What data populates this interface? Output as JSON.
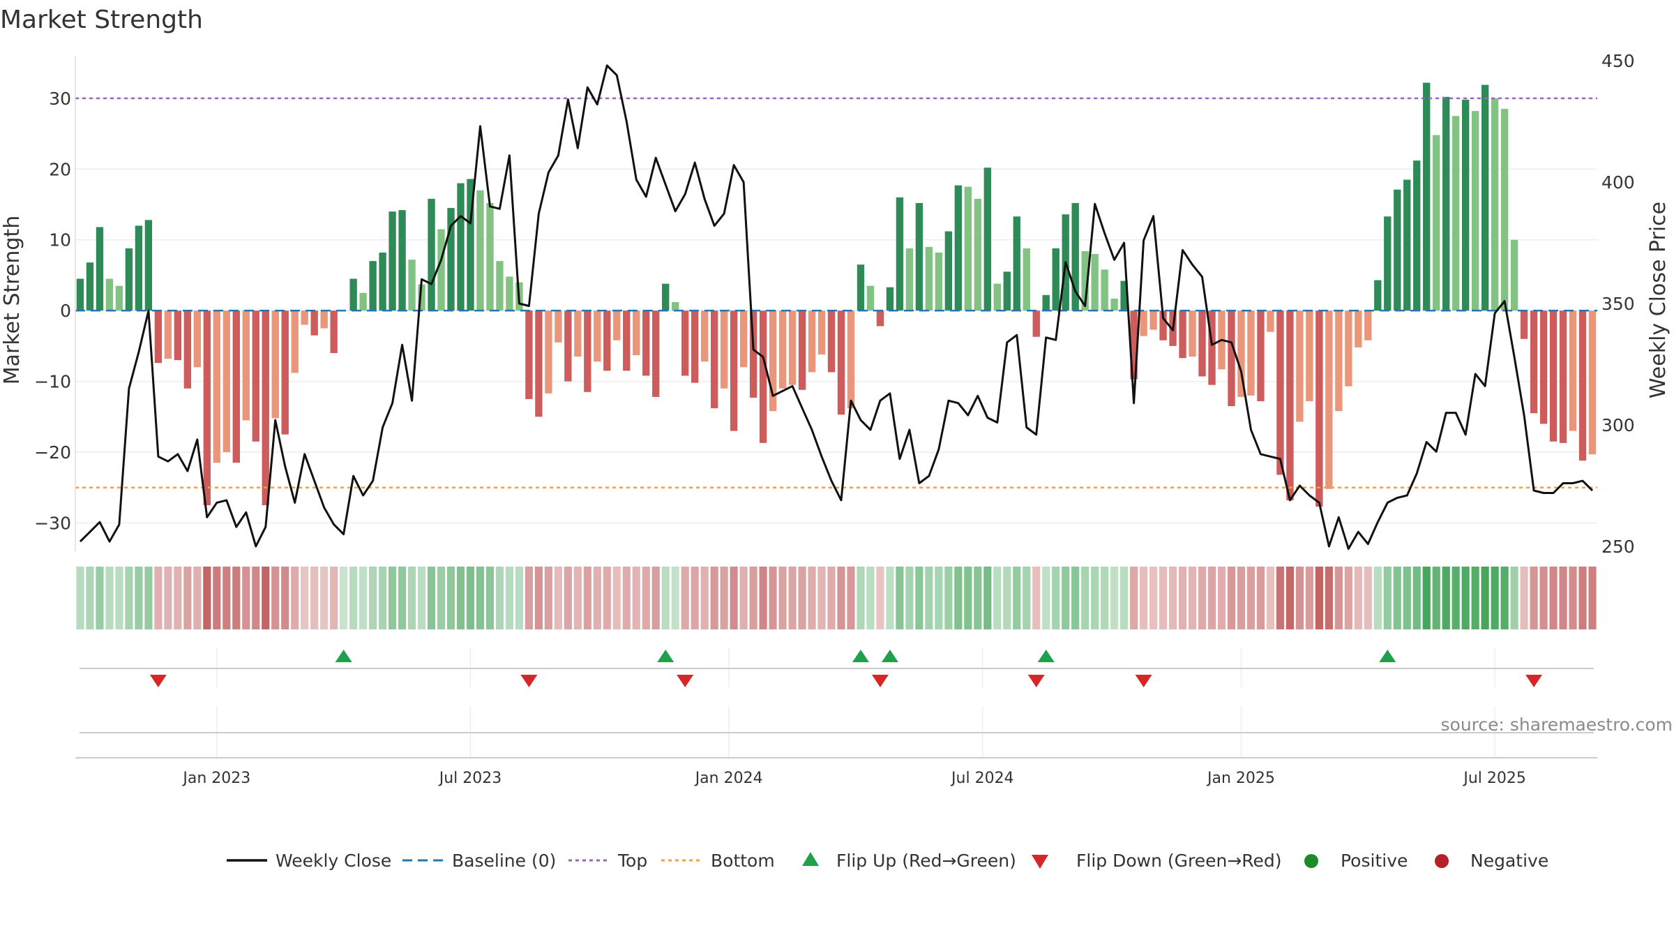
{
  "chart_data": {
    "type": "bar",
    "title": "Market Strength",
    "ylabel": "Market Strength",
    "y2label": "Weekly Close Price",
    "ylim": [
      -34,
      36
    ],
    "y2lim": [
      248,
      452
    ],
    "yticks": [
      30,
      20,
      10,
      0,
      -10,
      -20,
      -30
    ],
    "yticklabels": [
      "30",
      "20",
      "10",
      "0",
      "−10",
      "−20",
      "−30"
    ],
    "y2ticks": [
      450,
      400,
      350,
      300,
      250
    ],
    "top_threshold": 30,
    "bottom_threshold": -25,
    "baseline": 0,
    "start_date": "2022-09-26",
    "xtick_labels": [
      "Jan 2023",
      "Jul 2023",
      "Jan 2024",
      "Jul 2024",
      "Jan 2025",
      "Jul 2025"
    ],
    "xtick_weeks": [
      14,
      40,
      66.5,
      92.5,
      119,
      145
    ],
    "strength": [
      4.5,
      6.8,
      11.8,
      4.5,
      3.5,
      8.8,
      12,
      12.8,
      -7.4,
      -6.8,
      -7,
      -11,
      -8,
      -27.5,
      -21.5,
      -20,
      -21.5,
      -15.5,
      -18.5,
      -27.5,
      -15.2,
      -17.5,
      -8.8,
      -2,
      -3.5,
      -2.5,
      -6,
      0,
      4.5,
      2.5,
      7,
      8.2,
      14,
      14.2,
      7.2,
      3.7,
      15.8,
      11.5,
      14.5,
      18,
      18.6,
      17,
      15.2,
      7,
      4.8,
      4,
      -12.5,
      -15,
      -11.7,
      -4.5,
      -10,
      -6.5,
      -11.5,
      -7.2,
      -8.5,
      -4.2,
      -8.5,
      -6.3,
      -9.2,
      -12.2,
      3.8,
      1.2,
      -9.2,
      -10.2,
      -7.2,
      -13.8,
      -11,
      -17,
      -8,
      -12.3,
      -18.7,
      -14.2,
      -11,
      -10.5,
      -11.2,
      -8.7,
      -6.2,
      -8.7,
      -14.7,
      -13.8,
      6.5,
      3.5,
      -2.2,
      3.3,
      16,
      8.8,
      15.2,
      9,
      8.2,
      11.2,
      17.7,
      17.5,
      15.8,
      20.2,
      3.8,
      5.5,
      13.3,
      8.8,
      -3.7,
      2.2,
      8.8,
      13.6,
      15.2,
      8.4,
      8,
      5.8,
      1.7,
      4.2,
      -9.7,
      -3.6,
      -2.7,
      -4.2,
      -5,
      -6.7,
      -6.5,
      -9.3,
      -10.5,
      -8.3,
      -13.5,
      -12.2,
      -12,
      -12.8,
      -3,
      -23.2,
      -26.8,
      -15.7,
      -12.8,
      -27.7,
      -25.2,
      -14.2,
      -10.7,
      -5.2,
      -4.2,
      4.3,
      13.3,
      17.1,
      18.5,
      21.2,
      32.2,
      24.8,
      30.2,
      27.5,
      29.8,
      28.2,
      31.9,
      30,
      28.5,
      10,
      -4,
      -14.5,
      -16,
      -18.5,
      -18.7,
      -17,
      -21.2,
      -20.3
    ],
    "weekly_close": [
      252,
      256,
      260,
      252,
      259,
      315,
      330,
      347,
      287,
      285,
      288,
      281,
      294,
      262,
      268,
      269,
      258,
      264,
      250,
      258,
      302,
      283,
      268,
      288,
      277,
      266,
      259,
      255,
      279,
      271,
      277,
      299,
      309,
      333,
      310,
      360,
      358,
      368,
      382,
      386,
      383,
      423,
      390,
      389,
      411,
      350,
      349,
      387,
      404,
      411,
      434,
      414,
      439,
      432,
      448,
      444,
      425,
      401,
      394,
      410,
      399,
      388,
      395,
      408,
      393,
      382,
      387,
      407,
      400,
      331,
      328,
      312,
      314,
      316,
      307,
      298,
      287,
      277,
      269,
      310,
      302,
      298,
      310,
      313,
      286,
      298,
      276,
      279,
      290,
      310,
      309,
      304,
      312,
      303,
      301,
      334,
      337,
      299,
      296,
      336,
      335,
      367,
      355,
      349,
      391,
      379,
      368,
      375,
      309,
      376,
      386,
      344,
      339,
      372,
      366,
      361,
      333,
      335,
      334,
      322,
      298,
      288,
      287,
      286,
      269,
      275,
      271,
      268,
      250,
      262,
      249,
      256,
      251,
      260,
      268,
      270,
      271,
      280,
      293,
      289,
      305,
      305,
      296,
      321,
      316,
      346,
      351,
      328,
      304,
      273,
      272,
      272,
      276,
      276,
      277,
      273
    ],
    "flip_up_weeks": [
      27,
      60,
      80,
      83,
      99,
      134
    ],
    "flip_down_weeks": [
      8,
      46,
      62,
      82,
      98,
      109,
      149
    ],
    "legend": {
      "weekly_close": "Weekly Close",
      "baseline": "Baseline (0)",
      "top": "Top",
      "bottom": "Bottom",
      "flip_up": "Flip Up (Red→Green)",
      "flip_down": "Flip Down (Green→Red)",
      "positive": "Positive",
      "negative": "Negative"
    },
    "source": "source: sharemaestro.com",
    "colors": {
      "line": "#111111",
      "baseline": "#1f77b4",
      "top": "#9467bd",
      "bottom": "#f0a050",
      "pos_strong": "#2e8b57",
      "pos_weak": "#82c282",
      "neg_strong": "#cd5c5c",
      "neg_weak": "#e9967a",
      "flip_up": "#1fa04a",
      "flip_down": "#d62728",
      "positive_dot": "#1f8a28",
      "negative_dot": "#b22228"
    }
  }
}
